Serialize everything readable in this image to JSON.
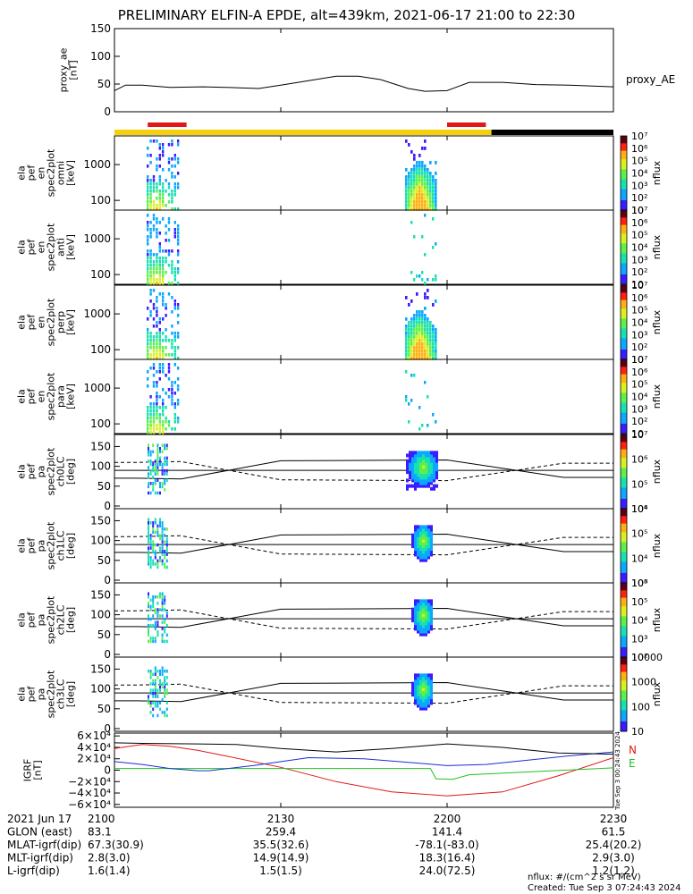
{
  "title": "PRELIMINARY ELFIN-A EPDE, alt=439km, 2021-06-17 21:00 to 22:30",
  "colors": {
    "ae_line": "#000000",
    "bar_red": "#e01818",
    "bar_yellow": "#f5d00a",
    "bar_black": "#000000",
    "igrf_N": "#e01818",
    "igrf_blue": "#1830d0",
    "igrf_E": "#20c020",
    "igrf_black": "#000000"
  },
  "chart_data": {
    "type": "line",
    "x_axis": {
      "units": "UT minutes after 21:00",
      "range": [
        0,
        90
      ],
      "tick_values": [
        0,
        30,
        60,
        90
      ],
      "tick_labels": [
        "2100",
        "2130",
        "2200",
        "2230"
      ]
    },
    "ae_panel": {
      "ylabel": "proxy_ae\n[nT]",
      "ylim": [
        0,
        150
      ],
      "yticks": [
        "150",
        "100",
        "50",
        "0"
      ],
      "legend": "proxy_AE",
      "series": [
        {
          "name": "proxy_AE",
          "x": [
            0,
            2,
            5,
            10,
            16,
            20,
            26,
            30,
            35,
            40,
            44,
            48,
            53,
            56,
            60,
            64,
            70,
            76,
            82,
            90
          ],
          "y": [
            38,
            48,
            48,
            44,
            45,
            44,
            42,
            48,
            56,
            64,
            64,
            58,
            42,
            37,
            38,
            53,
            53,
            49,
            48,
            45
          ]
        }
      ]
    },
    "status_bar": {
      "red_segments": [
        [
          6,
          13
        ],
        [
          60,
          67
        ]
      ],
      "yellow_range": [
        0,
        68
      ],
      "black_range": [
        68,
        90
      ]
    },
    "energy_panels": [
      {
        "id": "omni",
        "ylabel": "ela\npef\nen\nspec2plot\nomni\n[keV]",
        "yticks": [
          "1000",
          "100"
        ],
        "colorbar": {
          "labels": [
            "10⁷",
            "10⁶",
            "10⁵",
            "10⁴",
            "10³",
            "10²",
            "10"
          ],
          "title": "nflux"
        }
      },
      {
        "id": "anti",
        "ylabel": "ela\npef\nen\nspec2plot\nanti\n[keV]",
        "yticks": [
          "1000",
          "100"
        ],
        "colorbar": {
          "labels": [
            "10⁷",
            "10⁶",
            "10⁵",
            "10⁴",
            "10³",
            "10²",
            "10"
          ],
          "title": "nflux"
        }
      },
      {
        "id": "perp",
        "ylabel": "ela\npef\nen\nspec2plot\nperp\n[keV]",
        "yticks": [
          "1000",
          "100"
        ],
        "colorbar": {
          "labels": [
            "10⁷",
            "10⁶",
            "10⁵",
            "10⁴",
            "10³",
            "10²",
            "10"
          ],
          "title": "nflux"
        }
      },
      {
        "id": "para",
        "ylabel": "ela\npef\nen\nspec2plot\npara\n[keV]",
        "yticks": [
          "1000",
          "100"
        ],
        "colorbar": {
          "labels": [
            "10⁷",
            "10⁶",
            "10⁵",
            "10⁴",
            "10³",
            "10²",
            "10"
          ],
          "title": "nflux"
        }
      }
    ],
    "pa_panels": [
      {
        "id": "ch0LC",
        "ylabel": "ela\npef\npa\nspec2plot\nch0LC\n[deg]",
        "yticks": [
          "150",
          "100",
          "50",
          "0"
        ],
        "colorbar": {
          "labels": [
            "10⁷",
            "10⁶",
            "10⁵",
            "10⁴"
          ],
          "title": "nflux"
        }
      },
      {
        "id": "ch1LC",
        "ylabel": "ela\npef\npa\nspec2plot\nch1LC\n[deg]",
        "yticks": [
          "150",
          "100",
          "50",
          "0"
        ],
        "colorbar": {
          "labels": [
            "10⁶",
            "10⁵",
            "10⁴",
            "10³"
          ],
          "title": "nflux"
        }
      },
      {
        "id": "ch2LC",
        "ylabel": "ela\npef\npa\nspec2plot\nch2LC\n[deg]",
        "yticks": [
          "150",
          "100",
          "50",
          "0"
        ],
        "colorbar": {
          "labels": [
            "10⁶",
            "10⁵",
            "10⁴",
            "10³",
            "10²"
          ],
          "title": "nflux"
        }
      },
      {
        "id": "ch3LC",
        "ylabel": "ela\npef\npa\nspec2plot\nch3LC\n[deg]",
        "yticks": [
          "150",
          "100",
          "50",
          "0"
        ],
        "colorbar": {
          "labels": [
            "10000",
            "1000",
            "100",
            "10"
          ],
          "title": "nflux"
        }
      }
    ],
    "igrf_panel": {
      "ylabel": "IGRF\n[nT]",
      "ylim": [
        -65000,
        65000
      ],
      "yticks": [
        "6×10⁴",
        "4×10⁴",
        "2×10⁴",
        "0",
        "−2×10⁴",
        "−4×10⁴",
        "−6×10⁴"
      ],
      "legend": [
        "N",
        "E"
      ],
      "side_text": "Tue Sep  3 00:24:43 2024",
      "series": [
        {
          "name": "N",
          "x": [
            0,
            5,
            10,
            15,
            20,
            30,
            40,
            50,
            60,
            70,
            80,
            90
          ],
          "y": [
            38000,
            45000,
            42000,
            35000,
            25000,
            5000,
            -20000,
            -38000,
            -45000,
            -38000,
            -10000,
            22000
          ]
        },
        {
          "name": "E",
          "x": [
            0,
            10,
            20,
            30,
            40,
            50,
            57,
            58,
            61,
            64,
            90
          ],
          "y": [
            3000,
            3000,
            3000,
            3000,
            3000,
            3000,
            3000,
            -15000,
            -16000,
            -8000,
            4000
          ]
        },
        {
          "name": "",
          "x": [
            0,
            5,
            10,
            15,
            17,
            25,
            35,
            45,
            55,
            60,
            67,
            75,
            82,
            90
          ],
          "y": [
            15000,
            10000,
            3000,
            -1000,
            -1000,
            8000,
            22000,
            20000,
            12000,
            8000,
            10000,
            18000,
            25000,
            32000
          ]
        },
        {
          "name": "",
          "x": [
            0,
            5,
            15,
            22,
            30,
            40,
            50,
            60,
            70,
            80,
            90
          ],
          "y": [
            48000,
            47000,
            46000,
            45000,
            38000,
            32000,
            38000,
            46000,
            40000,
            30000,
            28000
          ]
        }
      ]
    },
    "footer": {
      "rows": [
        {
          "label": "2021 Jun 17",
          "values": [
            "2100",
            "2130",
            "2200",
            "2230"
          ]
        },
        {
          "label": "GLON (east)",
          "values": [
            "83.1",
            "259.4",
            "141.4",
            "61.5"
          ]
        },
        {
          "label": "MLAT-igrf(dip)",
          "values": [
            "67.3(30.9)",
            "35.5(32.6)",
            "-78.1(-83.0)",
            "25.4(20.2)"
          ]
        },
        {
          "label": "MLT-igrf(dip)",
          "values": [
            "2.8(3.0)",
            "14.9(14.9)",
            "18.3(16.4)",
            "2.9(3.0)"
          ]
        },
        {
          "label": "L-igrf(dip)",
          "values": [
            "1.6(1.4)",
            "1.5(1.5)",
            "24.0(72.5)",
            "1.2(1.2)"
          ]
        }
      ],
      "units_note": "nflux: #/(cm^2 s sr MeV)",
      "created": "Created: Tue Sep  3 07:24:43 2024"
    }
  }
}
